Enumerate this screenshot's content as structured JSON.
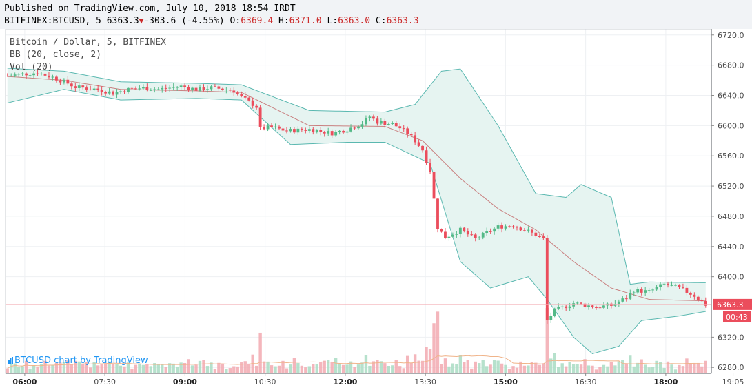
{
  "header": {
    "line1": "Published on TradingView.com, July 10, 2018 18:54 IRDT",
    "symbol": "BITFINEX:BTCUSD, 5",
    "last": "6363.3",
    "change": "-303.6 (-4.55%)",
    "o_label": "O:",
    "o_value": "6369.4",
    "h_label": "H:",
    "h_value": "6371.0",
    "l_label": "L:",
    "l_value": "6363.0",
    "c_label": "C:",
    "c_value": "6363.3"
  },
  "legend": {
    "title": "Bitcoin / Dollar, 5, BITFINEX",
    "bb": "BB (20, close, 2)",
    "vol": "Vol (20)"
  },
  "watermark": "BTCUSD chart by TradingView",
  "colors": {
    "up": "#53b987",
    "down": "#eb4d5c",
    "bb_fill": "#e6f4f1",
    "bb_band": "#5ab8b0",
    "basis": "#c98080",
    "vol_ma": "#f0b48a"
  },
  "chart_data": {
    "type": "candlestick",
    "symbol": "BTCUSD",
    "interval": "5",
    "price_axis": {
      "min": 6272,
      "max": 6728,
      "ticks": [
        6720,
        6680,
        6640,
        6600,
        6560,
        6520,
        6480,
        6440,
        6400,
        6360,
        6320,
        6280
      ]
    },
    "time_axis": {
      "ticks": [
        "06:00",
        "07:30",
        "09:00",
        "10:30",
        "12:00",
        "13:30",
        "15:00",
        "16:30",
        "18:00",
        "19:05"
      ]
    },
    "last_price_label": "6363.3",
    "countdown_label": "00:43",
    "price_path": [
      [
        0,
        6666
      ],
      [
        8,
        6670
      ],
      [
        12,
        6664
      ],
      [
        14,
        6660
      ],
      [
        16,
        6656
      ],
      [
        18,
        6651
      ],
      [
        24,
        6648
      ],
      [
        28,
        6643
      ],
      [
        32,
        6648
      ],
      [
        36,
        6650
      ],
      [
        40,
        6648
      ],
      [
        46,
        6652
      ],
      [
        50,
        6648
      ],
      [
        54,
        6650
      ],
      [
        58,
        6648
      ],
      [
        60,
        6646
      ],
      [
        62,
        6638
      ],
      [
        66,
        6625
      ],
      [
        67,
        6596
      ],
      [
        70,
        6598
      ],
      [
        74,
        6593
      ],
      [
        80,
        6595
      ],
      [
        86,
        6590
      ],
      [
        90,
        6595
      ],
      [
        94,
        6603
      ],
      [
        96,
        6612
      ],
      [
        98,
        6605
      ],
      [
        102,
        6602
      ],
      [
        104,
        6597
      ],
      [
        106,
        6590
      ],
      [
        108,
        6580
      ],
      [
        110,
        6568
      ],
      [
        112,
        6540
      ],
      [
        114,
        6465
      ],
      [
        116,
        6452
      ],
      [
        120,
        6462
      ],
      [
        124,
        6450
      ],
      [
        130,
        6466
      ],
      [
        134,
        6468
      ],
      [
        138,
        6460
      ],
      [
        140,
        6455
      ],
      [
        142,
        6450
      ],
      [
        143,
        6342
      ],
      [
        145,
        6355
      ],
      [
        150,
        6365
      ],
      [
        156,
        6360
      ],
      [
        160,
        6362
      ],
      [
        164,
        6372
      ],
      [
        166,
        6382
      ],
      [
        170,
        6380
      ],
      [
        174,
        6390
      ],
      [
        178,
        6385
      ],
      [
        182,
        6375
      ],
      [
        185,
        6363
      ]
    ],
    "bollinger": {
      "params": "20, close, 2",
      "basis": [
        [
          0,
          6665
        ],
        [
          15,
          6660
        ],
        [
          30,
          6648
        ],
        [
          50,
          6646
        ],
        [
          62,
          6644
        ],
        [
          80,
          6600
        ],
        [
          100,
          6599
        ],
        [
          110,
          6580
        ],
        [
          120,
          6530
        ],
        [
          130,
          6490
        ],
        [
          140,
          6462
        ],
        [
          150,
          6420
        ],
        [
          160,
          6385
        ],
        [
          170,
          6370
        ],
        [
          185,
          6368
        ]
      ],
      "upper": [
        [
          0,
          6676
        ],
        [
          15,
          6672
        ],
        [
          30,
          6658
        ],
        [
          50,
          6656
        ],
        [
          62,
          6654
        ],
        [
          80,
          6620
        ],
        [
          100,
          6618
        ],
        [
          108,
          6628
        ],
        [
          115,
          6672
        ],
        [
          120,
          6675
        ],
        [
          130,
          6600
        ],
        [
          140,
          6510
        ],
        [
          148,
          6505
        ],
        [
          152,
          6522
        ],
        [
          160,
          6505
        ],
        [
          165,
          6390
        ],
        [
          170,
          6393
        ],
        [
          185,
          6392
        ]
      ],
      "lower": [
        [
          0,
          6630
        ],
        [
          15,
          6648
        ],
        [
          30,
          6634
        ],
        [
          50,
          6636
        ],
        [
          62,
          6634
        ],
        [
          75,
          6575
        ],
        [
          90,
          6578
        ],
        [
          100,
          6578
        ],
        [
          112,
          6550
        ],
        [
          120,
          6420
        ],
        [
          128,
          6385
        ],
        [
          138,
          6400
        ],
        [
          143,
          6370
        ],
        [
          150,
          6320
        ],
        [
          155,
          6298
        ],
        [
          162,
          6308
        ],
        [
          168,
          6342
        ],
        [
          178,
          6348
        ],
        [
          185,
          6354
        ]
      ]
    },
    "volume_ma_period": 20
  }
}
